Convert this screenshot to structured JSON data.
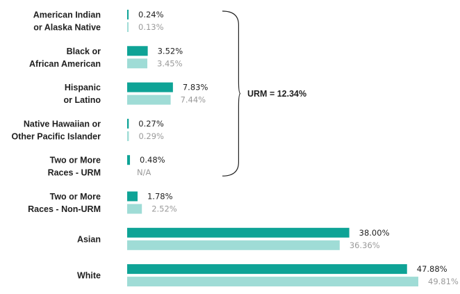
{
  "chart_data": {
    "type": "bar",
    "orientation": "horizontal",
    "categories": [
      [
        "American Indian",
        "or Alaska Native"
      ],
      [
        "Black or",
        "African American"
      ],
      [
        "Hispanic",
        "or Latino"
      ],
      [
        "Native Hawaiian or",
        "Other Pacific Islander"
      ],
      [
        "Two or More",
        "Races - URM"
      ],
      [
        "Two or More",
        "Races - Non-URM"
      ],
      [
        "Asian"
      ],
      [
        "White"
      ]
    ],
    "series": [
      {
        "color": "#0ea396",
        "values": [
          0.24,
          3.52,
          7.83,
          0.27,
          0.48,
          1.78,
          38.0,
          47.88
        ],
        "labels": [
          "0.24%",
          "3.52%",
          "7.83%",
          "0.27%",
          "0.48%",
          "1.78%",
          "38.00%",
          "47.88%"
        ]
      },
      {
        "color": "#9fdcd6",
        "values": [
          0.13,
          3.45,
          7.44,
          0.29,
          null,
          2.52,
          36.36,
          49.81
        ],
        "labels": [
          "0.13%",
          "3.45%",
          "7.44%",
          "0.29%",
          "N/A",
          "2.52%",
          "36.36%",
          "49.81%"
        ]
      }
    ],
    "xlim": [
      0,
      49.81
    ],
    "grid": false,
    "legend": "none",
    "annotation": {
      "text": "URM = 12.34%",
      "bracket_from_category": 0,
      "bracket_to_category": 4
    }
  }
}
